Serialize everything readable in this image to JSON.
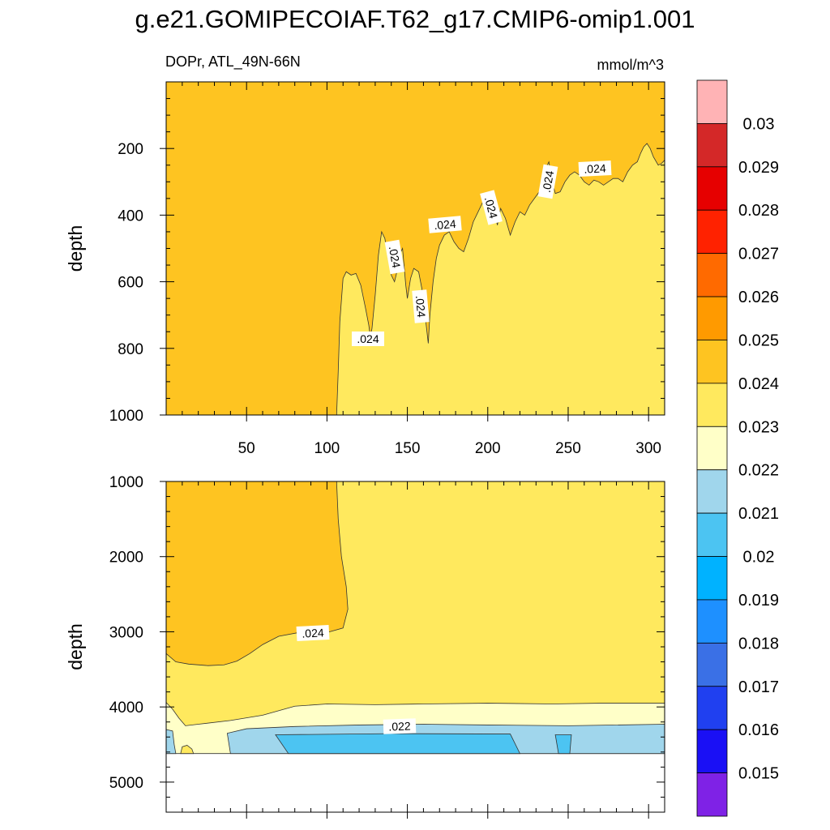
{
  "chart_data": {
    "type": "contour",
    "title": "g.e21.GOMIPECOIAF.T62_g17.CMIP6-omip1.001",
    "subtitle_left": "DOPr, ATL_49N-66N",
    "units": "mmol/m^3",
    "colorbar": {
      "labels": [
        "0.03",
        "0.029",
        "0.028",
        "0.027",
        "0.026",
        "0.025",
        "0.024",
        "0.023",
        "0.022",
        "0.021",
        "0.02",
        "0.019",
        "0.018",
        "0.017",
        "0.016",
        "0.015"
      ],
      "colors": [
        "#ffb3b5",
        "#d42828",
        "#e60000",
        "#ff2200",
        "#ff6a00",
        "#ff9a00",
        "#fec421",
        "#ffe95e",
        "#ffffc8",
        "#a0d6ec",
        "#4cc4f2",
        "#00b2ff",
        "#1e90ff",
        "#3a70e6",
        "#2040f0",
        "#1a10f5",
        "#7f22e6"
      ]
    },
    "panels": [
      {
        "name": "upper",
        "ylabel": "depth",
        "ylim": [
          1000,
          0
        ],
        "xlim": [
          0,
          310
        ],
        "y_ticks": [
          "200",
          "400",
          "600",
          "800",
          "1000"
        ],
        "x_ticks": [
          "50",
          "100",
          "150",
          "200",
          "250",
          "300"
        ],
        "contour_labels": [
          ".024",
          ".024",
          ".024",
          ".024",
          ".024",
          ".024",
          ".024"
        ],
        "regions": [
          {
            "level": "0.024-0.025",
            "area": "surface and west of ~x=105"
          },
          {
            "level": "0.023-0.024",
            "area": "below the .024 contour, east of ~x=105"
          }
        ]
      },
      {
        "name": "lower",
        "ylabel": "depth",
        "ylim": [
          5400,
          1000
        ],
        "xlim": [
          0,
          310
        ],
        "y_ticks": [
          "1000",
          "2000",
          "3000",
          "4000",
          "5000"
        ],
        "contour_labels": [
          ".024",
          ".022"
        ],
        "data_bottom_depth": 4620,
        "regions": [
          {
            "level": "0.024-0.025",
            "area": "west, 1000 to ~3400 m"
          },
          {
            "level": "0.023-0.024",
            "area": "main interior down to ~3950 m"
          },
          {
            "level": "0.022-0.023",
            "area": "band near 4000-4250 m"
          },
          {
            "level": "0.021-0.022",
            "area": "below ~4250 m"
          },
          {
            "level": "0.020-0.021",
            "area": "deep pocket x ~70-215 and small patch near x ~245"
          }
        ]
      }
    ]
  }
}
